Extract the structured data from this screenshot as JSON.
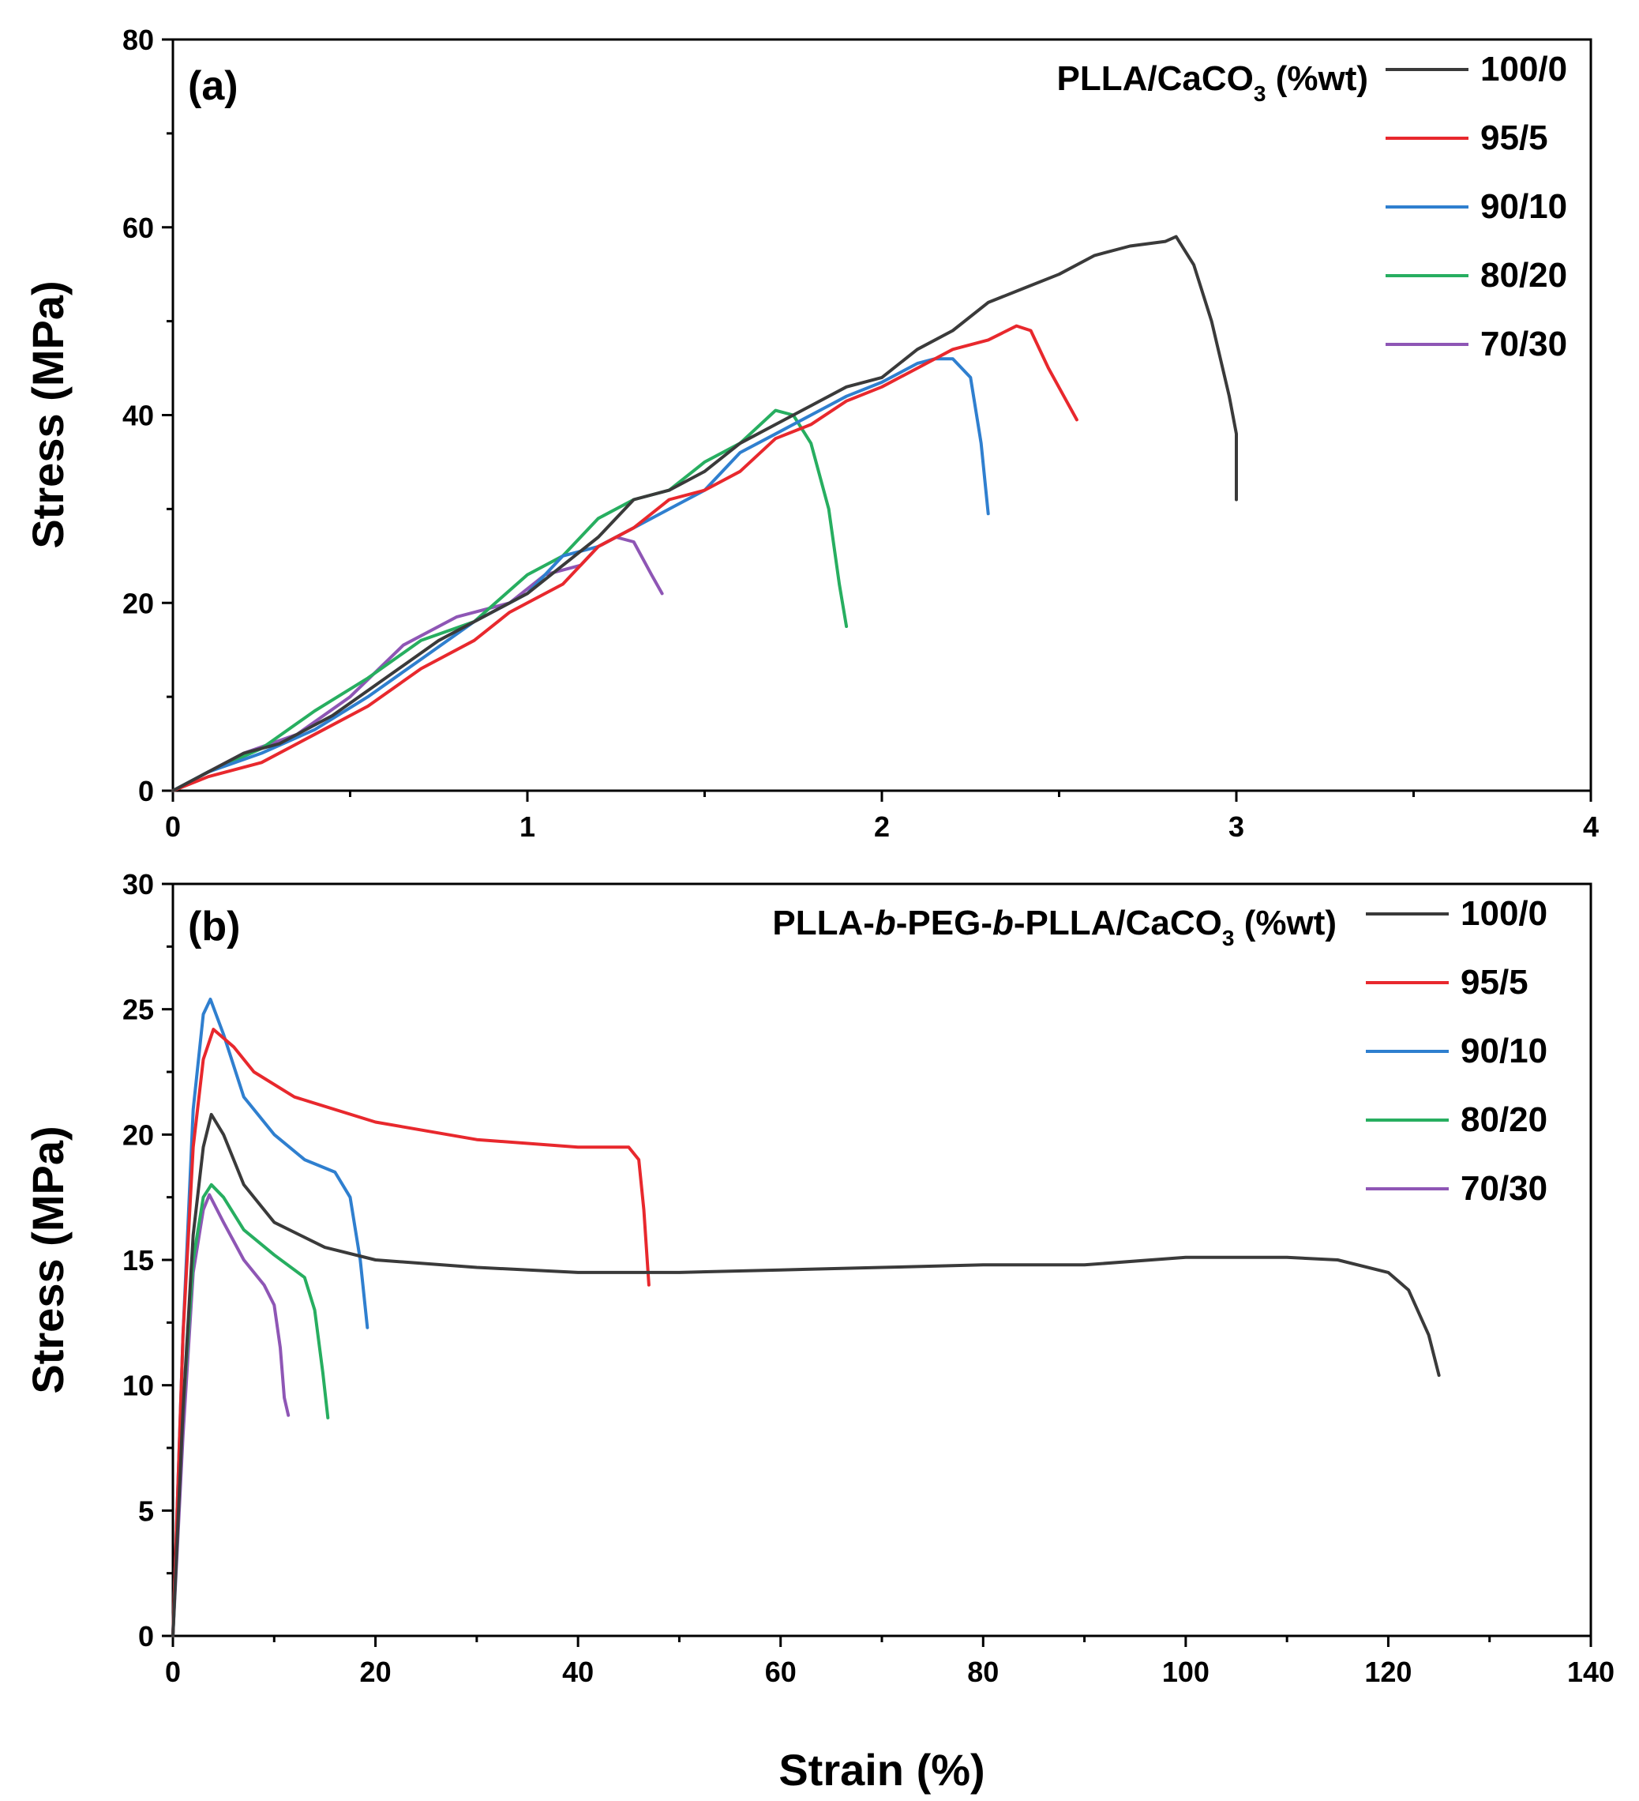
{
  "chart_data": [
    {
      "type": "line",
      "panel_label": "(a)",
      "legend_title": {
        "pre": "PLLA/CaCO",
        "sub": "3",
        "post": " (%wt)"
      },
      "xlabel": "",
      "ylabel": "Stress (MPa)",
      "xlim": [
        0,
        4
      ],
      "ylim": [
        0,
        80
      ],
      "x_ticks": [
        "0",
        "1",
        "2",
        "3",
        "4"
      ],
      "y_ticks": [
        "0",
        "20",
        "40",
        "60",
        "80"
      ],
      "legend_position": "top-right",
      "series": [
        {
          "name": "100/0",
          "color": "#3a3a3a",
          "x": [
            0,
            0.1,
            0.2,
            0.3,
            0.45,
            0.6,
            0.75,
            0.9,
            1.0,
            1.1,
            1.2,
            1.3,
            1.4,
            1.5,
            1.6,
            1.7,
            1.8,
            1.9,
            2.0,
            2.1,
            2.2,
            2.3,
            2.4,
            2.5,
            2.6,
            2.7,
            2.8,
            2.83,
            2.88,
            2.93,
            2.98,
            3.0,
            3.0
          ],
          "y": [
            0,
            2,
            4,
            5,
            8,
            12,
            16,
            19,
            21,
            24,
            27,
            31,
            32,
            34,
            37,
            39,
            41,
            43,
            44,
            47,
            49,
            52,
            53.5,
            55,
            57,
            58,
            58.5,
            59,
            56,
            50,
            42,
            38,
            31
          ]
        },
        {
          "name": "95/5",
          "color": "#e8282d",
          "x": [
            0,
            0.1,
            0.25,
            0.4,
            0.55,
            0.7,
            0.85,
            0.95,
            1.1,
            1.2,
            1.3,
            1.4,
            1.5,
            1.6,
            1.7,
            1.8,
            1.9,
            2.0,
            2.1,
            2.2,
            2.3,
            2.38,
            2.42,
            2.47,
            2.55
          ],
          "y": [
            0,
            1.5,
            3,
            6,
            9,
            13,
            16,
            19,
            22,
            26,
            28,
            31,
            32,
            34,
            37.5,
            39,
            41.5,
            43,
            45,
            47,
            48,
            49.5,
            49,
            45,
            39.5
          ]
        },
        {
          "name": "90/10",
          "color": "#2f7fcf",
          "x": [
            0,
            0.1,
            0.25,
            0.4,
            0.55,
            0.7,
            0.85,
            1.0,
            1.1,
            1.2,
            1.3,
            1.4,
            1.5,
            1.6,
            1.7,
            1.8,
            1.9,
            2.0,
            2.1,
            2.15,
            2.2,
            2.25,
            2.28,
            2.3
          ],
          "y": [
            0,
            2,
            4,
            6.5,
            10,
            14,
            18,
            21,
            25,
            26,
            28,
            30,
            32,
            36,
            38,
            40,
            42,
            43.5,
            45.5,
            46,
            46,
            44,
            37,
            29.5
          ]
        },
        {
          "name": "80/20",
          "color": "#27ae60",
          "x": [
            0,
            0.1,
            0.25,
            0.4,
            0.55,
            0.7,
            0.85,
            1.0,
            1.1,
            1.2,
            1.3,
            1.4,
            1.5,
            1.6,
            1.7,
            1.75,
            1.8,
            1.85,
            1.88,
            1.9
          ],
          "y": [
            0,
            2,
            4.5,
            8.5,
            12,
            16,
            18,
            23,
            25,
            29,
            31,
            32,
            35,
            37,
            40.5,
            40,
            37,
            30,
            22,
            17.5
          ]
        },
        {
          "name": "70/30",
          "color": "#8e56b5",
          "x": [
            0,
            0.1,
            0.2,
            0.35,
            0.5,
            0.65,
            0.8,
            0.95,
            1.05,
            1.15,
            1.2,
            1.25,
            1.3,
            1.35,
            1.38
          ],
          "y": [
            0,
            2,
            4,
            6,
            10,
            15.5,
            18.5,
            20,
            23,
            24,
            26,
            27,
            26.5,
            23,
            21
          ]
        }
      ]
    },
    {
      "type": "line",
      "panel_label": "(b)",
      "legend_title": {
        "pre": "PLLA-",
        "it1": "b",
        "mid1": "-PEG-",
        "it2": "b",
        "mid2": "-PLLA/CaCO",
        "sub": "3",
        "post": " (%wt)"
      },
      "xlabel": "Strain (%)",
      "ylabel": "Stress (MPa)",
      "xlim": [
        0,
        140
      ],
      "ylim": [
        0,
        30
      ],
      "x_ticks": [
        "0",
        "20",
        "40",
        "60",
        "80",
        "100",
        "120",
        "140"
      ],
      "y_ticks": [
        "0",
        "5",
        "10",
        "15",
        "20",
        "25",
        "30"
      ],
      "legend_position": "top-right",
      "series": [
        {
          "name": "100/0",
          "color": "#3a3a3a",
          "x": [
            0,
            1,
            2,
            3,
            3.8,
            5,
            7,
            10,
            15,
            20,
            30,
            40,
            50,
            60,
            70,
            80,
            90,
            100,
            110,
            115,
            120,
            122,
            124,
            125
          ],
          "y": [
            0,
            9,
            16,
            19.5,
            20.8,
            20,
            18,
            16.5,
            15.5,
            15,
            14.7,
            14.5,
            14.5,
            14.6,
            14.7,
            14.8,
            14.8,
            15.1,
            15.1,
            15,
            14.5,
            13.8,
            12,
            10.4
          ]
        },
        {
          "name": "95/5",
          "color": "#e8282d",
          "x": [
            0,
            1,
            2,
            3,
            4,
            6,
            8,
            12,
            20,
            30,
            40,
            45,
            46,
            46.5,
            47
          ],
          "y": [
            0,
            12,
            19.5,
            23,
            24.2,
            23.5,
            22.5,
            21.5,
            20.5,
            19.8,
            19.5,
            19.5,
            19,
            17,
            14
          ]
        },
        {
          "name": "90/10",
          "color": "#2f7fcf",
          "x": [
            0,
            1,
            2,
            3,
            3.7,
            5,
            7,
            10,
            13,
            16,
            17.5,
            18.5,
            19.2
          ],
          "y": [
            0,
            12,
            21,
            24.8,
            25.4,
            24,
            21.5,
            20,
            19,
            18.5,
            17.5,
            15,
            12.3
          ]
        },
        {
          "name": "80/20",
          "color": "#27ae60",
          "x": [
            0,
            1,
            2,
            3,
            3.8,
            5,
            7,
            10,
            13,
            14,
            14.8,
            15.3
          ],
          "y": [
            0,
            9,
            15,
            17.5,
            18,
            17.5,
            16.2,
            15.2,
            14.3,
            13,
            10.5,
            8.7
          ]
        },
        {
          "name": "70/30",
          "color": "#8e56b5",
          "x": [
            0,
            1,
            2,
            3,
            3.6,
            5,
            7,
            9,
            10,
            10.6,
            11,
            11.4
          ],
          "y": [
            0,
            8,
            14.5,
            17,
            17.6,
            16.5,
            15,
            14,
            13.2,
            11.5,
            9.5,
            8.8
          ]
        }
      ]
    }
  ]
}
